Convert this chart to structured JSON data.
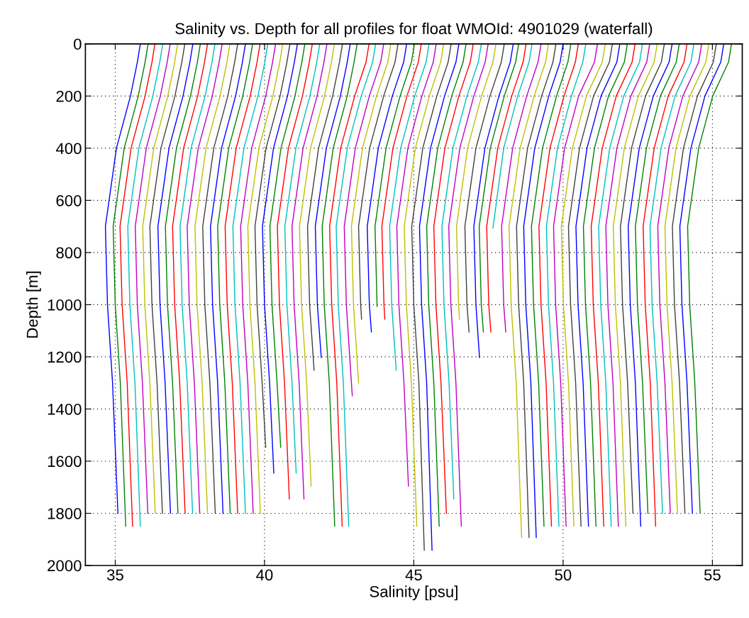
{
  "chart_data": {
    "type": "line",
    "title": "Salinity vs. Depth for all profiles for float WMOId: 4901029 (waterfall)",
    "xlabel": "Salinity [psu]",
    "ylabel": "Depth [m]",
    "xlim": [
      34,
      56
    ],
    "xticks": [
      35,
      40,
      45,
      50,
      55
    ],
    "ylim": [
      2000,
      0
    ],
    "yticks": [
      0,
      200,
      400,
      600,
      800,
      1000,
      1200,
      1400,
      1600,
      1800,
      2000
    ],
    "grid": true,
    "legend": false,
    "series": [
      {
        "color": "#0000ff",
        "x": [
          35.84,
          35.74,
          35.51,
          35.04,
          34.67,
          34.74,
          34.91,
          35.09
        ],
        "values": [
          0,
          70,
          200,
          400,
          700,
          1000,
          1300,
          1800
        ]
      },
      {
        "color": "#008000",
        "x": [
          36.1,
          36.0,
          35.77,
          35.3,
          34.93,
          35.0,
          35.17,
          35.35
        ],
        "values": [
          0,
          70,
          200,
          400,
          700,
          1000,
          1300,
          1850
        ]
      },
      {
        "color": "#ff0000",
        "x": [
          36.33,
          36.23,
          36.0,
          35.53,
          35.16,
          35.23,
          35.4,
          35.58
        ],
        "values": [
          0,
          70,
          200,
          400,
          700,
          1000,
          1300,
          1850
        ]
      },
      {
        "color": "#00bfbf",
        "x": [
          36.59,
          36.49,
          36.26,
          35.79,
          35.42,
          35.49,
          35.66,
          35.84
        ],
        "values": [
          0,
          70,
          200,
          400,
          700,
          1000,
          1300,
          1850
        ]
      },
      {
        "color": "#bf00bf",
        "x": [
          36.84,
          36.74,
          36.51,
          36.04,
          35.67,
          35.74,
          35.91,
          36.09
        ],
        "values": [
          0,
          70,
          200,
          400,
          700,
          1000,
          1300,
          1800
        ]
      },
      {
        "color": "#bfbf00",
        "x": [
          37.09,
          36.99,
          36.76,
          36.29,
          35.92,
          35.99,
          36.16,
          36.34
        ],
        "values": [
          0,
          70,
          200,
          400,
          700,
          1000,
          1300,
          1800
        ]
      },
      {
        "color": "#404040",
        "x": [
          37.33,
          37.23,
          37.0,
          36.53,
          36.16,
          36.23,
          36.4,
          36.58
        ],
        "values": [
          0,
          70,
          200,
          400,
          700,
          1000,
          1300,
          1800
        ]
      },
      {
        "color": "#0000ff",
        "x": [
          37.6,
          37.5,
          37.27,
          36.8,
          36.43,
          36.5,
          36.67,
          36.85
        ],
        "values": [
          0,
          70,
          200,
          400,
          700,
          1000,
          1300,
          1800
        ]
      },
      {
        "color": "#008000",
        "x": [
          37.85,
          37.75,
          37.52,
          37.05,
          36.68,
          36.75,
          36.92,
          37.1
        ],
        "values": [
          0,
          70,
          200,
          400,
          700,
          1000,
          1300,
          1800
        ]
      },
      {
        "color": "#ff0000",
        "x": [
          38.09,
          37.99,
          37.76,
          37.29,
          36.92,
          36.99,
          37.16,
          37.34
        ],
        "values": [
          0,
          70,
          200,
          400,
          700,
          1000,
          1300,
          1800
        ]
      },
      {
        "color": "#00bfbf",
        "x": [
          38.34,
          38.24,
          38.01,
          37.54,
          37.17,
          37.24,
          37.41,
          37.59
        ],
        "values": [
          0,
          70,
          200,
          400,
          700,
          1000,
          1300,
          1800
        ]
      },
      {
        "color": "#bf00bf",
        "x": [
          38.58,
          38.48,
          38.25,
          37.78,
          37.41,
          37.48,
          37.65,
          37.83
        ],
        "values": [
          0,
          70,
          200,
          400,
          700,
          1000,
          1300,
          1800
        ]
      },
      {
        "color": "#bfbf00",
        "x": [
          38.84,
          38.74,
          38.51,
          38.04,
          37.67,
          37.74,
          37.91,
          38.09
        ],
        "values": [
          0,
          70,
          200,
          400,
          700,
          1000,
          1300,
          1800
        ]
      },
      {
        "color": "#404040",
        "x": [
          39.1,
          39.0,
          38.77,
          38.3,
          37.93,
          38.0,
          38.17,
          38.35
        ],
        "values": [
          0,
          70,
          200,
          400,
          700,
          1000,
          1300,
          1800
        ]
      },
      {
        "color": "#0000ff",
        "x": [
          39.36,
          39.26,
          39.03,
          38.56,
          38.19,
          38.26,
          38.43,
          38.61
        ],
        "values": [
          0,
          70,
          200,
          400,
          700,
          1000,
          1300,
          1800
        ]
      },
      {
        "color": "#008000",
        "x": [
          39.6,
          39.5,
          39.27,
          38.8,
          38.43,
          38.5,
          38.67,
          38.85
        ],
        "values": [
          0,
          70,
          200,
          400,
          700,
          1000,
          1300,
          1800
        ]
      },
      {
        "color": "#ff0000",
        "x": [
          39.85,
          39.75,
          39.52,
          39.05,
          38.68,
          38.75,
          38.92,
          39.1
        ],
        "values": [
          0,
          70,
          200,
          400,
          700,
          1000,
          1300,
          1800
        ]
      },
      {
        "color": "#00bfbf",
        "x": [
          40.11,
          40.01,
          39.78,
          39.31,
          38.94,
          39.01,
          39.18,
          39.36
        ],
        "values": [
          0,
          70,
          200,
          400,
          700,
          1000,
          1300,
          1800
        ]
      },
      {
        "color": "#bf00bf",
        "x": [
          40.37,
          40.27,
          40.04,
          39.57,
          39.2,
          39.27,
          39.44,
          39.62
        ],
        "values": [
          0,
          70,
          200,
          400,
          700,
          1000,
          1300,
          1800
        ]
      },
      {
        "color": "#bfbf00",
        "x": [
          40.61,
          40.51,
          40.28,
          39.81,
          39.44,
          39.51,
          39.68,
          39.86
        ],
        "values": [
          0,
          70,
          200,
          400,
          700,
          1000,
          1300,
          1800
        ]
      },
      {
        "color": "#404040",
        "x": [
          40.85,
          40.75,
          40.52,
          40.05,
          39.68,
          39.75,
          39.92,
          40.04
        ],
        "values": [
          0,
          70,
          200,
          400,
          700,
          1000,
          1300,
          1547
        ]
      },
      {
        "color": "#0000ff",
        "x": [
          41.1,
          41.0,
          40.77,
          40.3,
          39.93,
          40.0,
          40.17,
          40.31
        ],
        "values": [
          0,
          70,
          200,
          400,
          700,
          1000,
          1300,
          1646
        ]
      },
      {
        "color": "#008000",
        "x": [
          41.35,
          41.25,
          41.02,
          40.55,
          40.18,
          40.25,
          40.42,
          40.54
        ],
        "values": [
          0,
          70,
          200,
          400,
          700,
          1000,
          1300,
          1547
        ]
      },
      {
        "color": "#ff0000",
        "x": [
          41.6,
          41.5,
          41.27,
          40.8,
          40.43,
          40.5,
          40.67,
          40.83
        ],
        "values": [
          0,
          70,
          200,
          400,
          700,
          1000,
          1300,
          1745
        ]
      },
      {
        "color": "#00bfbf",
        "x": [
          41.85,
          41.75,
          41.52,
          41.05,
          40.68,
          40.75,
          40.92,
          41.06
        ],
        "values": [
          0,
          70,
          200,
          400,
          700,
          1000,
          1300,
          1646
        ]
      },
      {
        "color": "#bf00bf",
        "x": [
          42.09,
          41.99,
          41.76,
          41.29,
          40.92,
          40.99,
          41.16,
          41.32
        ],
        "values": [
          0,
          70,
          200,
          400,
          700,
          1000,
          1300,
          1745
        ]
      },
      {
        "color": "#bfbf00",
        "x": [
          42.34,
          42.24,
          42.01,
          41.54,
          41.17,
          41.24,
          41.41,
          41.56
        ],
        "values": [
          0,
          70,
          200,
          400,
          700,
          1000,
          1300,
          1696
        ]
      },
      {
        "color": "#404040",
        "x": [
          42.61,
          42.51,
          42.28,
          41.81,
          41.44,
          41.51,
          41.66
        ],
        "values": [
          0,
          70,
          200,
          400,
          700,
          1000,
          1252
        ]
      },
      {
        "color": "#0000ff",
        "x": [
          42.87,
          42.77,
          42.54,
          42.07,
          41.7,
          41.77,
          41.9
        ],
        "values": [
          0,
          70,
          200,
          400,
          700,
          1000,
          1203
        ]
      },
      {
        "color": "#008000",
        "x": [
          43.1,
          43.0,
          42.77,
          42.3,
          41.93,
          42.0,
          42.17,
          42.35
        ],
        "values": [
          0,
          70,
          200,
          400,
          700,
          1000,
          1300,
          1850
        ]
      },
      {
        "color": "#ff0000",
        "x": [
          43.5,
          43.4,
          43.02,
          42.55,
          42.18,
          42.25,
          42.42,
          42.6
        ],
        "values": [
          0,
          70,
          200,
          400,
          700,
          1000,
          1300,
          1850
        ]
      },
      {
        "color": "#00bfbf",
        "x": [
          43.72,
          43.62,
          43.24,
          42.77,
          42.4,
          42.47,
          42.64,
          42.82
        ],
        "values": [
          0,
          70,
          200,
          400,
          700,
          1000,
          1300,
          1850
        ]
      },
      {
        "color": "#bf00bf",
        "x": [
          43.99,
          43.89,
          43.51,
          43.04,
          42.67,
          42.74,
          42.91,
          42.94
        ],
        "values": [
          0,
          70,
          200,
          400,
          700,
          1000,
          1300,
          1350
        ]
      },
      {
        "color": "#bfbf00",
        "x": [
          44.23,
          44.13,
          43.75,
          43.28,
          42.91,
          42.98,
          43.15
        ],
        "values": [
          0,
          70,
          200,
          400,
          700,
          1000,
          1301
        ]
      },
      {
        "color": "#404040",
        "x": [
          44.47,
          44.37,
          43.99,
          43.52,
          43.15,
          43.22,
          43.25
        ],
        "values": [
          0,
          70,
          200,
          400,
          700,
          1000,
          1056
        ]
      },
      {
        "color": "#0000ff",
        "x": [
          44.76,
          44.66,
          44.28,
          43.81,
          43.44,
          43.51,
          43.58
        ],
        "values": [
          0,
          70,
          200,
          400,
          700,
          1000,
          1105
        ]
      },
      {
        "color": "#008000",
        "x": [
          45.02,
          44.92,
          44.54,
          44.07,
          43.7,
          43.77
        ],
        "values": [
          0,
          70,
          200,
          400,
          700,
          1007
        ]
      },
      {
        "color": "#ff0000",
        "x": [
          45.25,
          45.15,
          44.77,
          44.3,
          43.93,
          44.0,
          44.03
        ],
        "values": [
          0,
          70,
          200,
          400,
          700,
          1000,
          1056
        ]
      },
      {
        "color": "#00bfbf",
        "x": [
          45.51,
          45.41,
          45.03,
          44.56,
          44.19,
          44.26,
          44.41
        ],
        "values": [
          0,
          70,
          200,
          400,
          700,
          1000,
          1252
        ]
      },
      {
        "color": "#bf00bf",
        "x": [
          45.75,
          45.65,
          45.27,
          44.8,
          44.43,
          44.5,
          44.67,
          44.82
        ],
        "values": [
          0,
          70,
          200,
          400,
          700,
          1000,
          1300,
          1696
        ]
      },
      {
        "color": "#bfbf00",
        "x": [
          46.0,
          45.9,
          45.52,
          45.05,
          44.68,
          44.75,
          44.92,
          45.1
        ],
        "values": [
          0,
          70,
          200,
          400,
          700,
          1000,
          1300,
          1850
        ]
      },
      {
        "color": "#404040",
        "x": [
          46.25,
          46.15,
          45.77,
          45.3,
          44.93,
          45.0,
          45.17,
          45.35
        ],
        "values": [
          0,
          70,
          200,
          400,
          700,
          1000,
          1300,
          1942
        ]
      },
      {
        "color": "#0000ff",
        "x": [
          46.51,
          46.41,
          46.03,
          45.56,
          45.19,
          45.26,
          45.43,
          45.61
        ],
        "values": [
          0,
          70,
          200,
          400,
          700,
          1000,
          1300,
          1942
        ]
      },
      {
        "color": "#008000",
        "x": [
          46.75,
          46.65,
          46.27,
          45.8,
          45.43,
          45.5,
          45.67,
          45.85
        ],
        "values": [
          0,
          70,
          200,
          400,
          700,
          1000,
          1300,
          1850
        ]
      },
      {
        "color": "#ff0000",
        "x": [
          46.99,
          46.89,
          46.51,
          46.04,
          45.67,
          45.74,
          45.91,
          46.09
        ],
        "values": [
          0,
          70,
          200,
          400,
          700,
          1000,
          1300,
          1800
        ]
      },
      {
        "color": "#00bfbf",
        "x": [
          47.26,
          47.16,
          46.78,
          46.31,
          45.94,
          46.01,
          46.18,
          46.34
        ],
        "values": [
          0,
          70,
          200,
          400,
          700,
          1000,
          1300,
          1745
        ]
      },
      {
        "color": "#bf00bf",
        "x": [
          47.49,
          47.39,
          47.01,
          46.54,
          46.17,
          46.24,
          46.41,
          46.59
        ],
        "values": [
          0,
          70,
          200,
          400,
          700,
          1000,
          1300,
          1850
        ]
      },
      {
        "color": "#bfbf00",
        "x": [
          47.75,
          47.65,
          47.27,
          46.8,
          46.43,
          46.5,
          46.53
        ],
        "values": [
          0,
          70,
          200,
          400,
          700,
          1000,
          1056
        ]
      },
      {
        "color": "#404040",
        "x": [
          48.03,
          47.93,
          47.55,
          47.08,
          46.71,
          46.78,
          46.85
        ],
        "values": [
          0,
          70,
          200,
          400,
          700,
          1000,
          1105
        ]
      },
      {
        "color": "#0000ff",
        "x": [
          48.33,
          48.23,
          47.85,
          47.38,
          47.01,
          47.08,
          47.2
        ],
        "values": [
          0,
          70,
          200,
          400,
          700,
          1000,
          1203
        ]
      },
      {
        "color": "#008000",
        "x": [
          48.51,
          48.41,
          48.03,
          47.56,
          47.19,
          47.26,
          47.33
        ],
        "values": [
          0,
          70,
          200,
          400,
          700,
          1000,
          1105
        ]
      },
      {
        "color": "#ff0000",
        "x": [
          48.76,
          48.66,
          48.28,
          47.81,
          47.44,
          47.51,
          47.58
        ],
        "values": [
          0,
          70,
          200,
          400,
          700,
          1000,
          1105
        ]
      },
      {
        "color": "#00bfbf",
        "x": [
          48.96,
          48.86,
          48.48,
          48.01,
          47.65
        ],
        "values": [
          0,
          70,
          200,
          400,
          706
        ]
      },
      {
        "color": "#bf00bf",
        "x": [
          49.26,
          49.16,
          48.78,
          48.31,
          47.94,
          48.01,
          48.08
        ],
        "values": [
          0,
          70,
          200,
          400,
          700,
          1000,
          1105
        ]
      },
      {
        "color": "#bfbf00",
        "x": [
          49.51,
          49.41,
          49.03,
          48.56,
          48.19,
          48.26,
          48.43,
          48.61
        ],
        "values": [
          0,
          70,
          200,
          400,
          700,
          1000,
          1300,
          1893
        ]
      },
      {
        "color": "#404040",
        "x": [
          49.76,
          49.66,
          49.28,
          48.81,
          48.44,
          48.51,
          48.68,
          48.86
        ],
        "values": [
          0,
          70,
          200,
          400,
          700,
          1000,
          1300,
          1893
        ]
      },
      {
        "color": "#0000ff",
        "x": [
          50.0,
          49.9,
          49.52,
          49.05,
          48.68,
          48.75,
          48.92,
          49.1
        ],
        "values": [
          0,
          70,
          200,
          400,
          700,
          1000,
          1300,
          1893
        ]
      },
      {
        "color": "#008000",
        "x": [
          50.26,
          50.16,
          49.78,
          49.31,
          48.94,
          49.01,
          49.18,
          49.36
        ],
        "values": [
          0,
          70,
          200,
          400,
          700,
          1000,
          1300,
          1850
        ]
      },
      {
        "color": "#ff0000",
        "x": [
          50.51,
          50.41,
          50.03,
          49.56,
          49.19,
          49.26,
          49.43,
          49.61
        ],
        "values": [
          0,
          70,
          200,
          400,
          700,
          1000,
          1300,
          1850
        ]
      },
      {
        "color": "#00bfbf",
        "x": [
          50.76,
          50.66,
          50.28,
          49.81,
          49.44,
          49.51,
          49.68,
          49.86
        ],
        "values": [
          0,
          70,
          200,
          400,
          700,
          1000,
          1300,
          1850
        ]
      },
      {
        "color": "#bf00bf",
        "x": [
          51.15,
          51.05,
          50.52,
          50.05,
          49.68,
          49.75,
          49.92,
          50.1
        ],
        "values": [
          0,
          70,
          200,
          400,
          700,
          1000,
          1300,
          1850
        ]
      },
      {
        "color": "#bfbf00",
        "x": [
          51.41,
          51.31,
          50.78,
          50.31,
          49.94,
          50.01,
          50.18,
          50.36
        ],
        "values": [
          0,
          70,
          200,
          400,
          700,
          1000,
          1300,
          1850
        ]
      },
      {
        "color": "#404040",
        "x": [
          51.65,
          51.55,
          51.02,
          50.55,
          50.18,
          50.25,
          50.42,
          50.6
        ],
        "values": [
          0,
          70,
          200,
          400,
          700,
          1000,
          1300,
          1850
        ]
      },
      {
        "color": "#0000ff",
        "x": [
          51.9,
          51.8,
          51.27,
          50.8,
          50.43,
          50.5,
          50.67,
          50.85
        ],
        "values": [
          0,
          70,
          200,
          400,
          700,
          1000,
          1300,
          1850
        ]
      },
      {
        "color": "#008000",
        "x": [
          52.15,
          52.05,
          51.52,
          51.05,
          50.68,
          50.75,
          50.92,
          51.1
        ],
        "values": [
          0,
          70,
          200,
          400,
          700,
          1000,
          1300,
          1850
        ]
      },
      {
        "color": "#ff0000",
        "x": [
          52.41,
          52.31,
          51.78,
          51.31,
          50.94,
          51.01,
          51.18,
          51.36
        ],
        "values": [
          0,
          70,
          200,
          400,
          700,
          1000,
          1300,
          1850
        ]
      },
      {
        "color": "#00bfbf",
        "x": [
          52.66,
          52.56,
          52.03,
          51.56,
          51.19,
          51.26,
          51.43,
          51.61
        ],
        "values": [
          0,
          70,
          200,
          400,
          700,
          1000,
          1300,
          1850
        ]
      },
      {
        "color": "#bf00bf",
        "x": [
          52.9,
          52.8,
          52.27,
          51.8,
          51.43,
          51.5,
          51.67,
          51.85
        ],
        "values": [
          0,
          70,
          200,
          400,
          700,
          1000,
          1300,
          1850
        ]
      },
      {
        "color": "#bfbf00",
        "x": [
          53.15,
          53.05,
          52.52,
          52.05,
          51.68,
          51.75,
          51.92,
          52.1
        ],
        "values": [
          0,
          70,
          200,
          400,
          700,
          1000,
          1300,
          1850
        ]
      },
      {
        "color": "#404040",
        "x": [
          53.39,
          53.29,
          52.76,
          52.29,
          51.92,
          51.99,
          52.16,
          52.34
        ],
        "values": [
          0,
          70,
          200,
          400,
          700,
          1000,
          1300,
          1800
        ]
      },
      {
        "color": "#0000ff",
        "x": [
          53.65,
          53.55,
          53.02,
          52.55,
          52.18,
          52.25,
          52.42,
          52.6
        ],
        "values": [
          0,
          70,
          200,
          400,
          700,
          1000,
          1300,
          1850
        ]
      },
      {
        "color": "#008000",
        "x": [
          53.89,
          53.79,
          53.26,
          52.79,
          52.42,
          52.49,
          52.66,
          52.84
        ],
        "values": [
          0,
          70,
          200,
          400,
          700,
          1000,
          1300,
          1800
        ]
      },
      {
        "color": "#ff0000",
        "x": [
          54.15,
          54.05,
          53.52,
          53.05,
          52.68,
          52.75,
          52.92,
          53.1
        ],
        "values": [
          0,
          70,
          200,
          400,
          700,
          1000,
          1300,
          1850
        ]
      },
      {
        "color": "#00bfbf",
        "x": [
          54.38,
          54.28,
          53.75,
          53.28,
          52.91,
          52.98,
          53.15,
          53.33
        ],
        "values": [
          0,
          70,
          200,
          400,
          700,
          1000,
          1300,
          1800
        ]
      },
      {
        "color": "#bf00bf",
        "x": [
          54.64,
          54.54,
          54.01,
          53.54,
          53.17,
          53.24,
          53.41,
          53.59
        ],
        "values": [
          0,
          70,
          200,
          400,
          700,
          1000,
          1300,
          1800
        ]
      },
      {
        "color": "#bfbf00",
        "x": [
          54.88,
          54.78,
          54.25,
          53.78,
          53.41,
          53.48,
          53.65,
          53.83
        ],
        "values": [
          0,
          70,
          200,
          400,
          700,
          1000,
          1300,
          1800
        ]
      },
      {
        "color": "#404040",
        "x": [
          55.13,
          55.03,
          54.5,
          54.03,
          53.66,
          53.73,
          53.9,
          54.08
        ],
        "values": [
          0,
          70,
          200,
          400,
          700,
          1000,
          1300,
          1800
        ]
      },
      {
        "color": "#0000ff",
        "x": [
          55.38,
          55.28,
          54.75,
          54.28,
          53.91,
          53.98,
          54.15,
          54.33
        ],
        "values": [
          0,
          70,
          200,
          400,
          700,
          1000,
          1300,
          1800
        ]
      },
      {
        "color": "#008000",
        "x": [
          55.64,
          55.54,
          55.01,
          54.54,
          54.17,
          54.24,
          54.41,
          54.59
        ],
        "values": [
          0,
          70,
          200,
          400,
          700,
          1000,
          1300,
          1800
        ]
      }
    ]
  }
}
